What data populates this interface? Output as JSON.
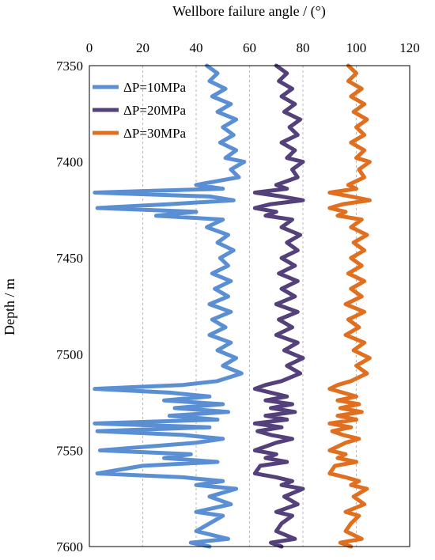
{
  "chart_data": {
    "type": "line",
    "xlabel": "Wellbore failure angle / (°)",
    "ylabel": "Depth / m",
    "xlim": [
      0,
      120
    ],
    "ylim": [
      7350,
      7600
    ],
    "x_ticks": [
      "0",
      "20",
      "40",
      "60",
      "80",
      "100",
      "120"
    ],
    "y_ticks": [
      "7350",
      "7400",
      "7450",
      "7500",
      "7550",
      "7600"
    ],
    "x_axis_position": "top",
    "y_axis_inverted": true,
    "grid": "vertical dashed",
    "legend_position": "top-left",
    "series": [
      {
        "name": "ΔP=10MPa",
        "color": "#5b8fd4",
        "points": [
          [
            44,
            7350
          ],
          [
            48,
            7354
          ],
          [
            45,
            7358
          ],
          [
            51,
            7362
          ],
          [
            46,
            7366
          ],
          [
            53,
            7370
          ],
          [
            48,
            7374
          ],
          [
            55,
            7378
          ],
          [
            50,
            7382
          ],
          [
            54,
            7386
          ],
          [
            49,
            7390
          ],
          [
            55,
            7394
          ],
          [
            51,
            7398
          ],
          [
            58,
            7400
          ],
          [
            53,
            7404
          ],
          [
            56,
            7408
          ],
          [
            40,
            7412
          ],
          [
            50,
            7414
          ],
          [
            2,
            7416
          ],
          [
            45,
            7418
          ],
          [
            54,
            7420
          ],
          [
            30,
            7422
          ],
          [
            3,
            7424
          ],
          [
            40,
            7426
          ],
          [
            25,
            7428
          ],
          [
            50,
            7430
          ],
          [
            44,
            7434
          ],
          [
            52,
            7438
          ],
          [
            48,
            7442
          ],
          [
            54,
            7446
          ],
          [
            49,
            7450
          ],
          [
            52,
            7454
          ],
          [
            46,
            7458
          ],
          [
            53,
            7462
          ],
          [
            47,
            7466
          ],
          [
            52,
            7470
          ],
          [
            45,
            7474
          ],
          [
            53,
            7478
          ],
          [
            46,
            7482
          ],
          [
            51,
            7486
          ],
          [
            45,
            7490
          ],
          [
            53,
            7494
          ],
          [
            48,
            7498
          ],
          [
            55,
            7502
          ],
          [
            50,
            7506
          ],
          [
            57,
            7510
          ],
          [
            48,
            7514
          ],
          [
            35,
            7516
          ],
          [
            2,
            7518
          ],
          [
            30,
            7520
          ],
          [
            45,
            7522
          ],
          [
            28,
            7524
          ],
          [
            50,
            7526
          ],
          [
            32,
            7528
          ],
          [
            52,
            7530
          ],
          [
            30,
            7532
          ],
          [
            48,
            7534
          ],
          [
            2,
            7536
          ],
          [
            45,
            7538
          ],
          [
            3,
            7540
          ],
          [
            35,
            7542
          ],
          [
            50,
            7544
          ],
          [
            40,
            7546
          ],
          [
            4,
            7550
          ],
          [
            38,
            7552
          ],
          [
            28,
            7554
          ],
          [
            48,
            7556
          ],
          [
            20,
            7558
          ],
          [
            3,
            7562
          ],
          [
            35,
            7564
          ],
          [
            50,
            7566
          ],
          [
            40,
            7568
          ],
          [
            55,
            7570
          ],
          [
            45,
            7574
          ],
          [
            53,
            7578
          ],
          [
            40,
            7582
          ],
          [
            50,
            7584
          ],
          [
            45,
            7588
          ],
          [
            40,
            7592
          ],
          [
            52,
            7596
          ],
          [
            38,
            7598
          ],
          [
            45,
            7600
          ]
        ]
      },
      {
        "name": "ΔP=20MPa",
        "color": "#54407a",
        "points": [
          [
            70,
            7350
          ],
          [
            74,
            7354
          ],
          [
            71,
            7358
          ],
          [
            76,
            7362
          ],
          [
            72,
            7366
          ],
          [
            77,
            7370
          ],
          [
            73,
            7374
          ],
          [
            79,
            7378
          ],
          [
            75,
            7382
          ],
          [
            78,
            7386
          ],
          [
            72,
            7390
          ],
          [
            77,
            7394
          ],
          [
            74,
            7398
          ],
          [
            80,
            7400
          ],
          [
            76,
            7404
          ],
          [
            78,
            7408
          ],
          [
            70,
            7412
          ],
          [
            74,
            7414
          ],
          [
            62,
            7416
          ],
          [
            72,
            7418
          ],
          [
            80,
            7420
          ],
          [
            68,
            7422
          ],
          [
            62,
            7424
          ],
          [
            70,
            7426
          ],
          [
            66,
            7428
          ],
          [
            76,
            7430
          ],
          [
            72,
            7434
          ],
          [
            79,
            7438
          ],
          [
            74,
            7442
          ],
          [
            78,
            7446
          ],
          [
            72,
            7450
          ],
          [
            77,
            7454
          ],
          [
            71,
            7458
          ],
          [
            78,
            7462
          ],
          [
            72,
            7466
          ],
          [
            77,
            7470
          ],
          [
            70,
            7474
          ],
          [
            78,
            7478
          ],
          [
            71,
            7482
          ],
          [
            76,
            7486
          ],
          [
            70,
            7490
          ],
          [
            78,
            7494
          ],
          [
            73,
            7498
          ],
          [
            80,
            7502
          ],
          [
            74,
            7506
          ],
          [
            79,
            7510
          ],
          [
            72,
            7514
          ],
          [
            66,
            7516
          ],
          [
            62,
            7518
          ],
          [
            68,
            7520
          ],
          [
            74,
            7522
          ],
          [
            66,
            7524
          ],
          [
            76,
            7526
          ],
          [
            68,
            7528
          ],
          [
            77,
            7530
          ],
          [
            66,
            7532
          ],
          [
            74,
            7534
          ],
          [
            62,
            7536
          ],
          [
            72,
            7538
          ],
          [
            63,
            7540
          ],
          [
            68,
            7542
          ],
          [
            76,
            7544
          ],
          [
            70,
            7546
          ],
          [
            62,
            7550
          ],
          [
            70,
            7552
          ],
          [
            66,
            7554
          ],
          [
            74,
            7556
          ],
          [
            64,
            7558
          ],
          [
            62,
            7562
          ],
          [
            70,
            7564
          ],
          [
            76,
            7566
          ],
          [
            72,
            7568
          ],
          [
            80,
            7570
          ],
          [
            73,
            7574
          ],
          [
            78,
            7578
          ],
          [
            70,
            7582
          ],
          [
            76,
            7584
          ],
          [
            72,
            7588
          ],
          [
            70,
            7592
          ],
          [
            77,
            7596
          ],
          [
            68,
            7598
          ],
          [
            72,
            7600
          ]
        ]
      },
      {
        "name": "ΔP=30MPa",
        "color": "#e07020",
        "points": [
          [
            97,
            7350
          ],
          [
            100,
            7354
          ],
          [
            97,
            7358
          ],
          [
            102,
            7362
          ],
          [
            98,
            7366
          ],
          [
            103,
            7370
          ],
          [
            99,
            7374
          ],
          [
            104,
            7378
          ],
          [
            100,
            7382
          ],
          [
            103,
            7386
          ],
          [
            98,
            7390
          ],
          [
            103,
            7394
          ],
          [
            100,
            7398
          ],
          [
            105,
            7400
          ],
          [
            101,
            7404
          ],
          [
            103,
            7408
          ],
          [
            97,
            7412
          ],
          [
            100,
            7414
          ],
          [
            90,
            7416
          ],
          [
            98,
            7418
          ],
          [
            105,
            7420
          ],
          [
            95,
            7422
          ],
          [
            90,
            7424
          ],
          [
            96,
            7426
          ],
          [
            93,
            7428
          ],
          [
            102,
            7430
          ],
          [
            98,
            7434
          ],
          [
            104,
            7438
          ],
          [
            99,
            7442
          ],
          [
            103,
            7446
          ],
          [
            98,
            7450
          ],
          [
            102,
            7454
          ],
          [
            97,
            7458
          ],
          [
            103,
            7462
          ],
          [
            98,
            7466
          ],
          [
            102,
            7470
          ],
          [
            96,
            7474
          ],
          [
            103,
            7478
          ],
          [
            97,
            7482
          ],
          [
            101,
            7486
          ],
          [
            96,
            7490
          ],
          [
            103,
            7494
          ],
          [
            99,
            7498
          ],
          [
            105,
            7502
          ],
          [
            100,
            7506
          ],
          [
            104,
            7510
          ],
          [
            98,
            7514
          ],
          [
            93,
            7516
          ],
          [
            90,
            7518
          ],
          [
            95,
            7520
          ],
          [
            100,
            7522
          ],
          [
            93,
            7524
          ],
          [
            101,
            7526
          ],
          [
            94,
            7528
          ],
          [
            102,
            7530
          ],
          [
            93,
            7532
          ],
          [
            100,
            7534
          ],
          [
            90,
            7536
          ],
          [
            98,
            7538
          ],
          [
            91,
            7540
          ],
          [
            95,
            7542
          ],
          [
            101,
            7544
          ],
          [
            96,
            7546
          ],
          [
            90,
            7550
          ],
          [
            96,
            7552
          ],
          [
            93,
            7554
          ],
          [
            100,
            7556
          ],
          [
            92,
            7558
          ],
          [
            90,
            7562
          ],
          [
            96,
            7564
          ],
          [
            101,
            7566
          ],
          [
            98,
            7568
          ],
          [
            104,
            7570
          ],
          [
            99,
            7574
          ],
          [
            103,
            7578
          ],
          [
            96,
            7582
          ],
          [
            101,
            7584
          ],
          [
            98,
            7588
          ],
          [
            96,
            7592
          ],
          [
            102,
            7596
          ],
          [
            94,
            7598
          ],
          [
            98,
            7600
          ]
        ]
      }
    ]
  }
}
